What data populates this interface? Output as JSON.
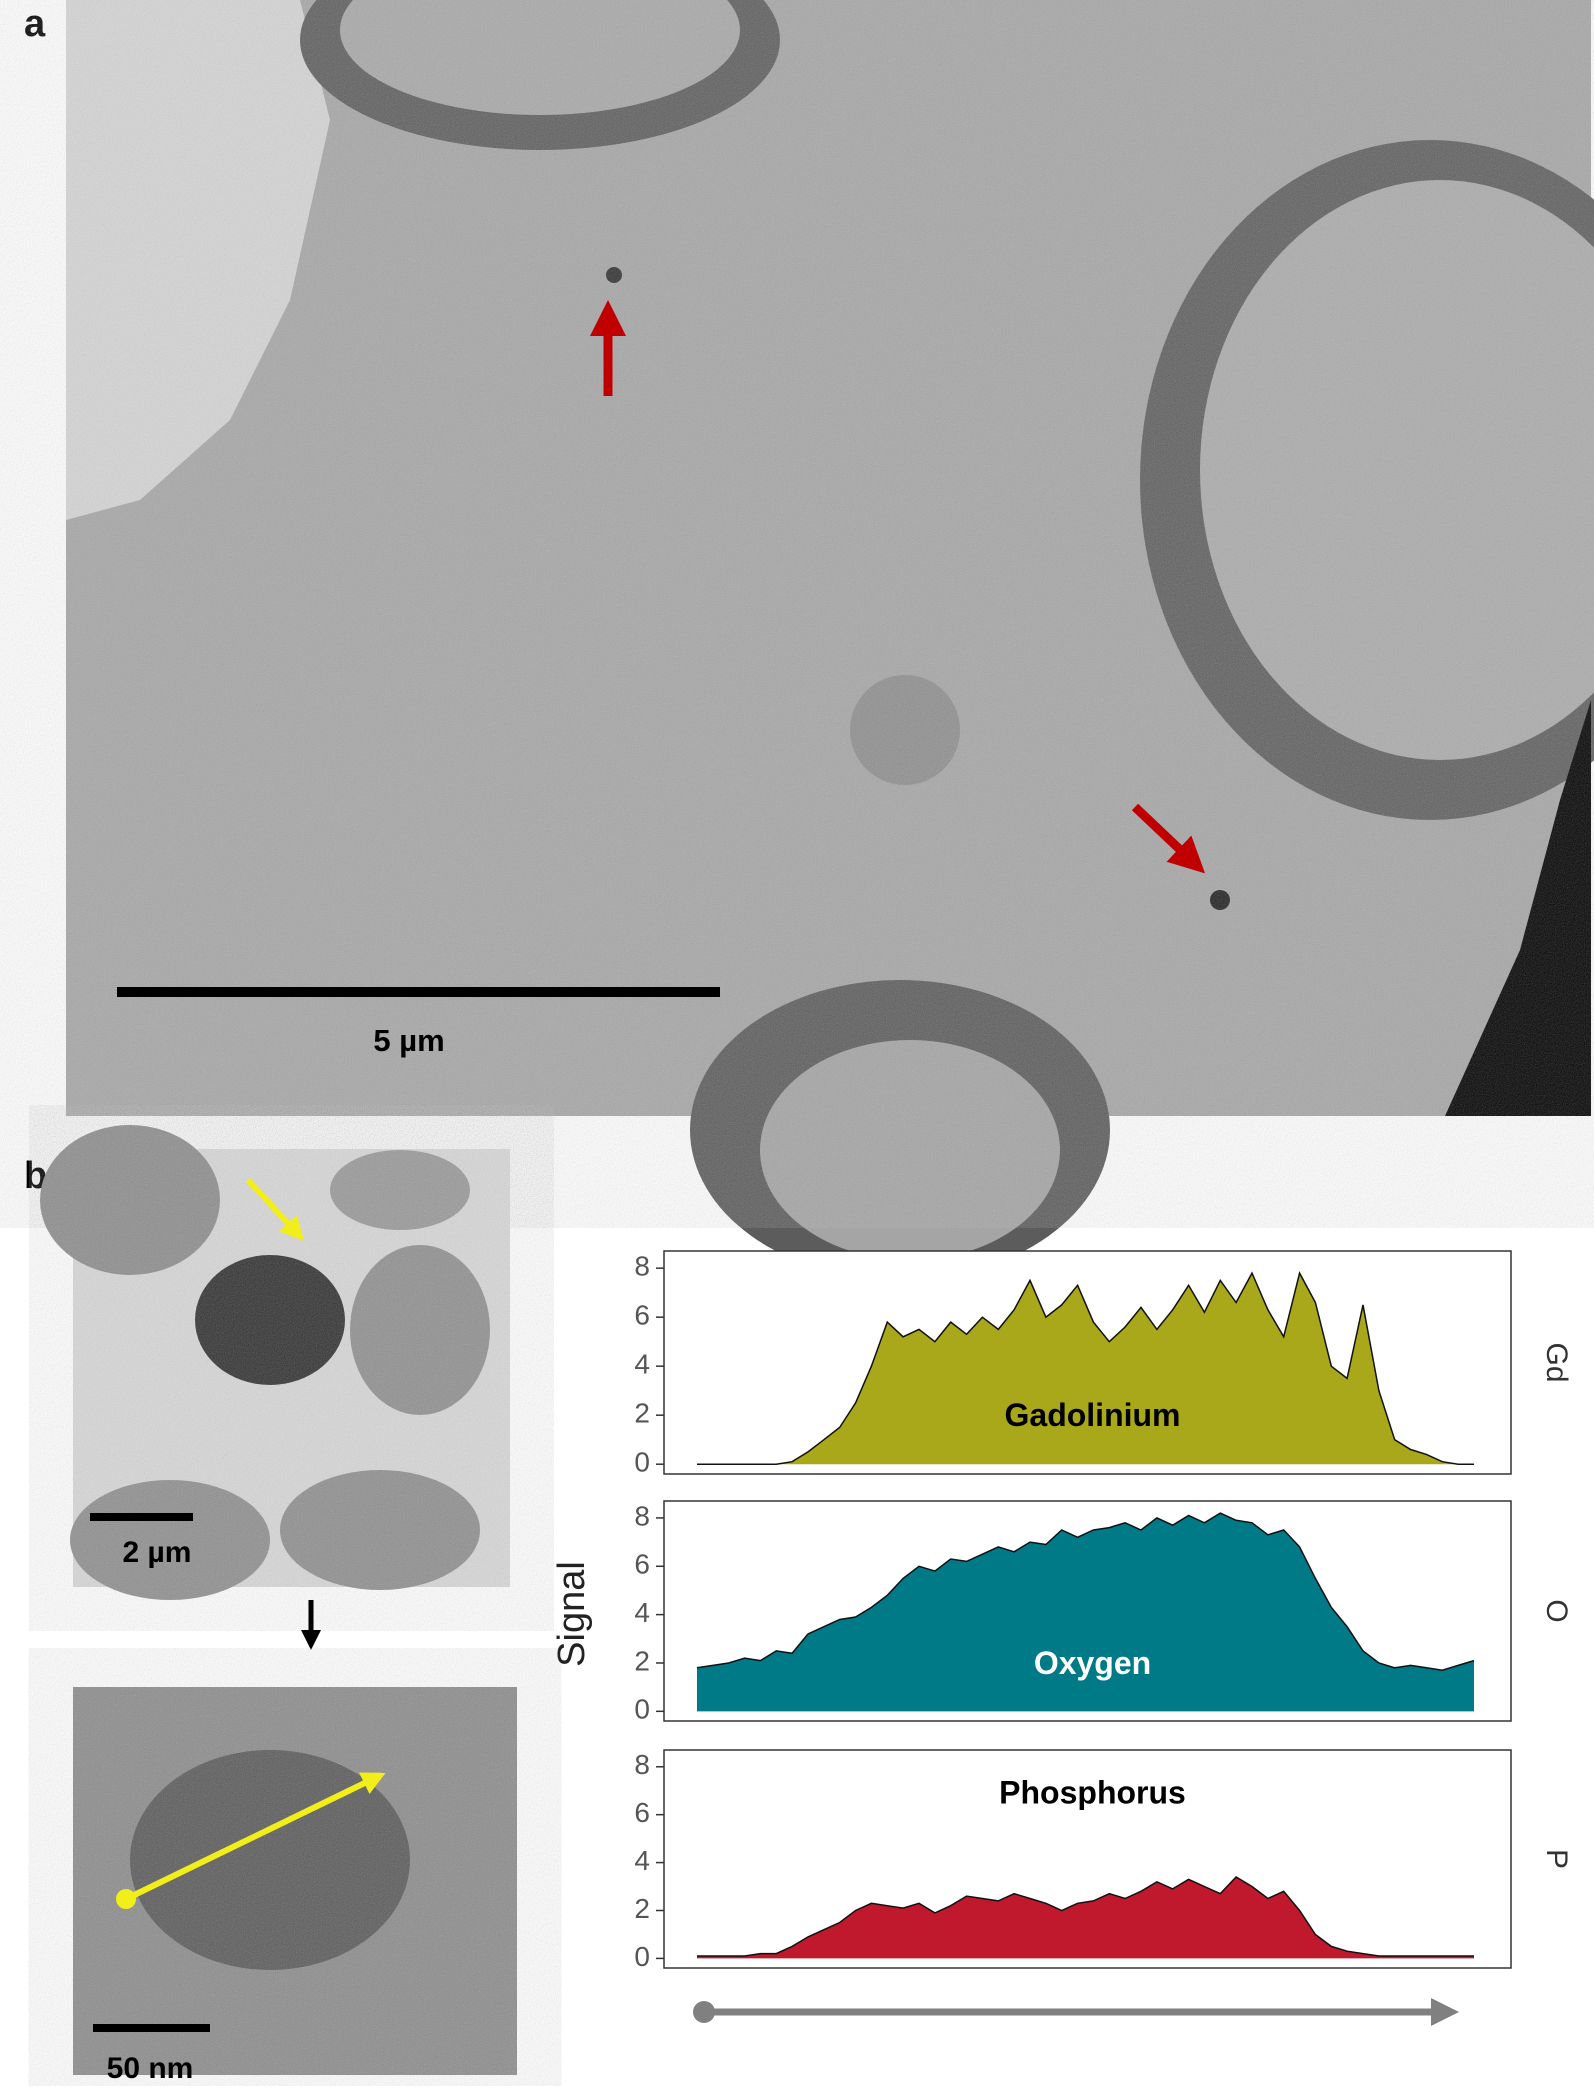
{
  "panels": {
    "a": "a",
    "b": "b"
  },
  "scale_bars": {
    "a": "5 µm",
    "b_top": "2 µm",
    "b_bottom": "50 nm"
  },
  "shared_ylabel": "Signal",
  "chart_data": [
    {
      "type": "area",
      "label": "Gadolinium",
      "facet": "Gd",
      "color": "#a8a81a",
      "label_color": "#000000",
      "values": [
        0,
        0,
        0,
        0,
        0,
        0,
        0.1,
        0.5,
        1,
        1.5,
        2.5,
        4,
        5.8,
        5.2,
        5.5,
        5,
        5.8,
        5.3,
        6,
        5.5,
        6.3,
        7.5,
        6,
        6.5,
        7.3,
        5.8,
        5,
        5.6,
        6.4,
        5.5,
        6.3,
        7.3,
        6.2,
        7.5,
        6.6,
        7.8,
        6.3,
        5.2,
        7.8,
        6.6,
        4,
        3.5,
        6.5,
        3,
        1,
        0.6,
        0.4,
        0.1,
        0,
        0
      ],
      "ylim": [
        -0.4,
        8.7
      ],
      "yticks": [
        0,
        2,
        4,
        6,
        8
      ]
    },
    {
      "type": "area",
      "label": "Oxygen",
      "facet": "O",
      "color": "#007a87",
      "label_color": "#ffffff",
      "values": [
        1.8,
        1.9,
        2,
        2.2,
        2.1,
        2.5,
        2.4,
        3.2,
        3.5,
        3.8,
        3.9,
        4.3,
        4.8,
        5.5,
        6,
        5.8,
        6.3,
        6.2,
        6.5,
        6.8,
        6.6,
        7,
        6.9,
        7.5,
        7.2,
        7.5,
        7.6,
        7.8,
        7.5,
        8,
        7.7,
        8.1,
        7.8,
        8.2,
        7.9,
        7.8,
        7.3,
        7.5,
        6.8,
        5.5,
        4.3,
        3.5,
        2.5,
        2,
        1.8,
        1.9,
        1.8,
        1.7,
        1.9,
        2.1
      ],
      "ylim": [
        -0.4,
        8.7
      ],
      "yticks": [
        0,
        2,
        4,
        6,
        8
      ]
    },
    {
      "type": "area",
      "label": "Phosphorus",
      "facet": "P",
      "color": "#c0192e",
      "label_color": "#000000",
      "label_at_top": true,
      "values": [
        0.1,
        0.1,
        0.1,
        0.1,
        0.2,
        0.2,
        0.5,
        0.9,
        1.2,
        1.5,
        2,
        2.3,
        2.2,
        2.1,
        2.3,
        1.9,
        2.2,
        2.6,
        2.5,
        2.4,
        2.7,
        2.5,
        2.3,
        2,
        2.3,
        2.4,
        2.7,
        2.5,
        2.8,
        3.2,
        2.9,
        3.3,
        3,
        2.7,
        3.4,
        3,
        2.5,
        2.8,
        2,
        1,
        0.5,
        0.3,
        0.2,
        0.1,
        0.1,
        0.1,
        0.1,
        0.1,
        0.1,
        0.1
      ],
      "ylim": [
        -0.4,
        8.7
      ],
      "yticks": [
        0,
        2,
        4,
        6,
        8
      ]
    }
  ]
}
